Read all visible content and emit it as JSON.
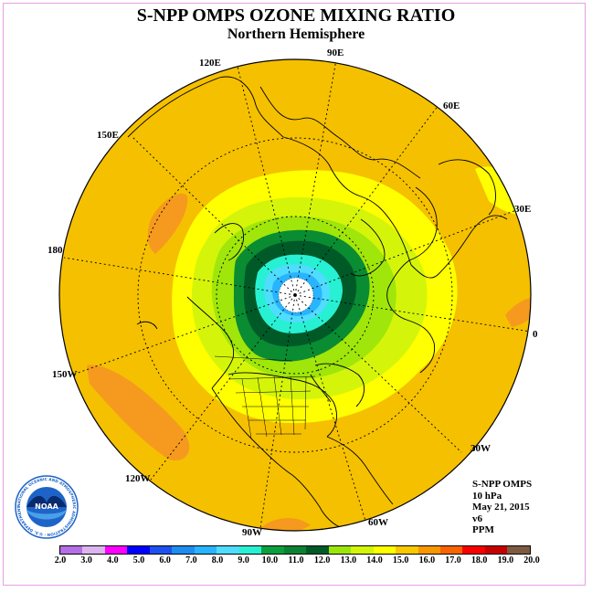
{
  "title": "S-NPP OMPS OZONE MIXING RATIO",
  "subtitle": "Northern Hemisphere",
  "longitude_labels": [
    "90E",
    "120E",
    "60E",
    "150E",
    "30E",
    "180",
    "0",
    "150W",
    "30W",
    "120W",
    "60W",
    "90W"
  ],
  "info": {
    "instrument": "S-NPP OMPS",
    "level": "10 hPa",
    "date": "May 21, 2015",
    "version": "v6",
    "units": "PPM"
  },
  "logo": {
    "text": "NOAA",
    "ring_text": "NATIONAL OCEANIC AND ATMOSPHERIC ADMINISTRATION · U.S. DEPARTMENT OF COMMERCE"
  },
  "colorbar": {
    "ticks": [
      "2.0",
      "3.0",
      "4.0",
      "5.0",
      "6.0",
      "7.0",
      "8.0",
      "9.0",
      "10.0",
      "11.0",
      "12.0",
      "13.0",
      "14.0",
      "15.0",
      "16.0",
      "17.0",
      "18.0",
      "19.0",
      "20.0"
    ],
    "colors": [
      "#b46ee6",
      "#dcb4f0",
      "#ff00ff",
      "#0000ff",
      "#1e50f0",
      "#1e8cf0",
      "#28b4ff",
      "#50dcff",
      "#28f0d2",
      "#0aa03c",
      "#0a8232",
      "#005a28",
      "#9be60a",
      "#d2f50a",
      "#ffff00",
      "#fac800",
      "#fa9600",
      "#fa6400",
      "#fa0000",
      "#c80000",
      "#7d5a41"
    ]
  },
  "map_colors": {
    "ocean_background": "#f5c000",
    "band_16": "#f5c000",
    "band_17": "#f59a1e",
    "band_15": "#ffff00",
    "band_14": "#d4f50a",
    "band_13": "#a0e60a",
    "band_12": "#0a8c32",
    "band_11": "#005a28",
    "band_9": "#28f0d2",
    "band_8": "#50dcff",
    "band_7": "#28b4ff",
    "pole": "#ffffff"
  }
}
